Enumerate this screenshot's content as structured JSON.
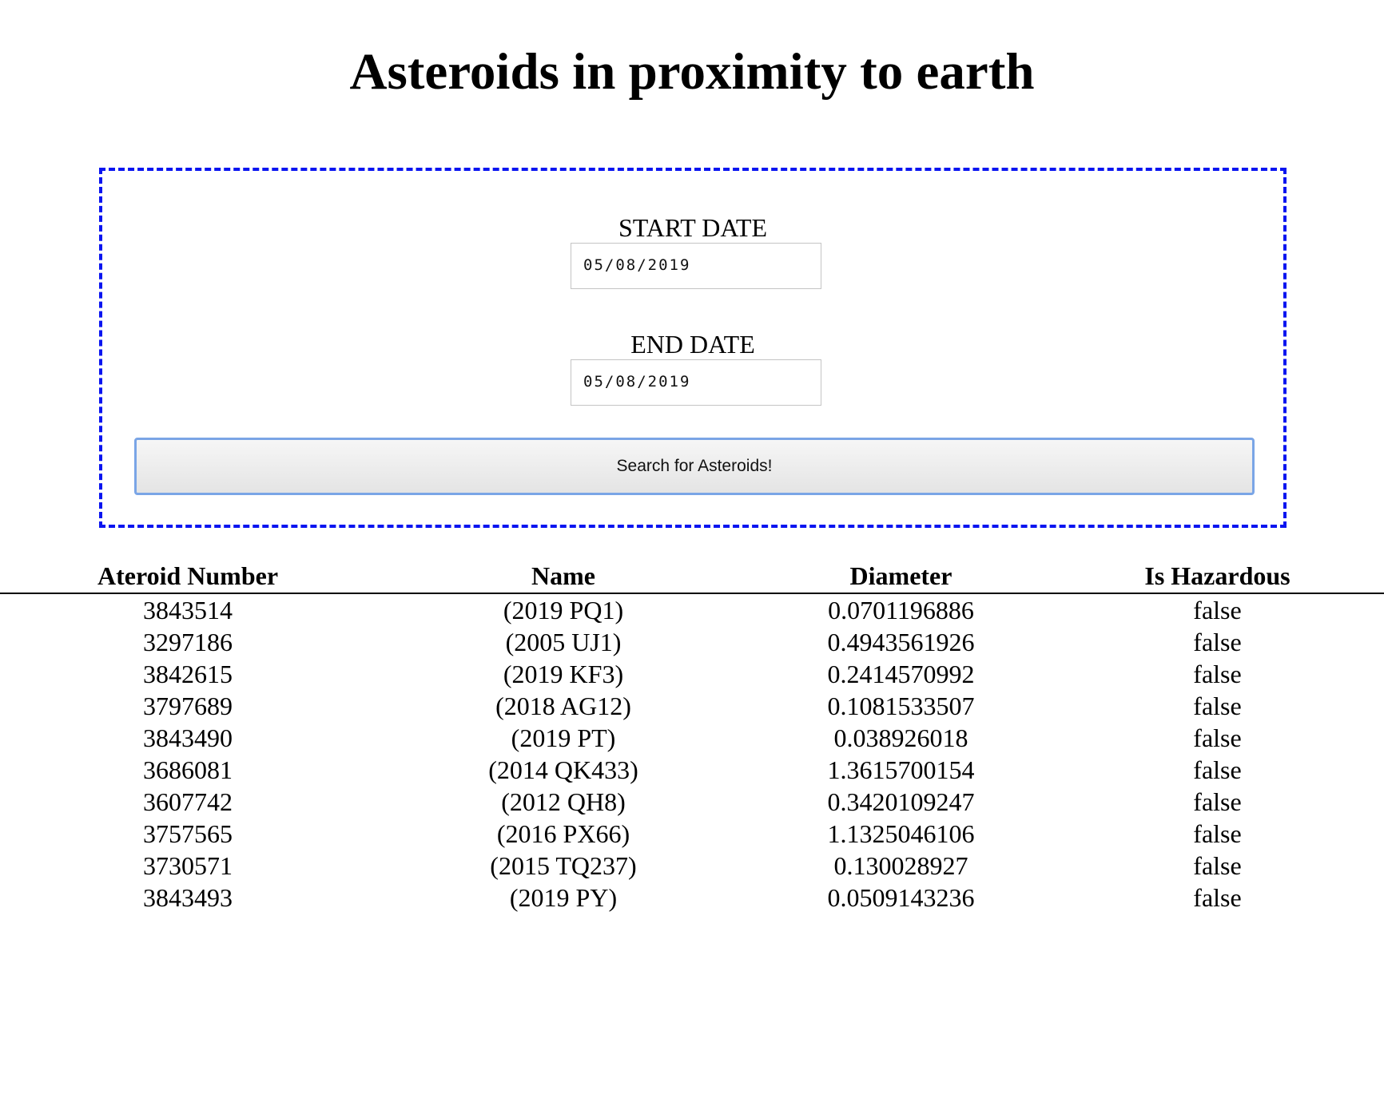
{
  "page": {
    "title": "Asteroids in proximity to earth"
  },
  "search": {
    "start_label": "START DATE",
    "start_value": "05/08/2019",
    "end_label": "END DATE",
    "end_value": "05/08/2019",
    "button_label": "Search for Asteroids!",
    "border_color": "#0a15f0"
  },
  "table": {
    "headers": [
      "Ateroid Number",
      "Name",
      "Diameter",
      "Is Hazardous"
    ],
    "rows": [
      [
        "3843514",
        "(2019 PQ1)",
        "0.0701196886",
        "false"
      ],
      [
        "3297186",
        "(2005 UJ1)",
        "0.4943561926",
        "false"
      ],
      [
        "3842615",
        "(2019 KF3)",
        "0.2414570992",
        "false"
      ],
      [
        "3797689",
        "(2018 AG12)",
        "0.1081533507",
        "false"
      ],
      [
        "3843490",
        "(2019 PT)",
        "0.038926018",
        "false"
      ],
      [
        "3686081",
        "(2014 QK433)",
        "1.3615700154",
        "false"
      ],
      [
        "3607742",
        "(2012 QH8)",
        "0.3420109247",
        "false"
      ],
      [
        "3757565",
        "(2016 PX66)",
        "1.1325046106",
        "false"
      ],
      [
        "3730571",
        "(2015 TQ237)",
        "0.130028927",
        "false"
      ],
      [
        "3843493",
        "(2019 PY)",
        "0.0509143236",
        "false"
      ]
    ]
  }
}
